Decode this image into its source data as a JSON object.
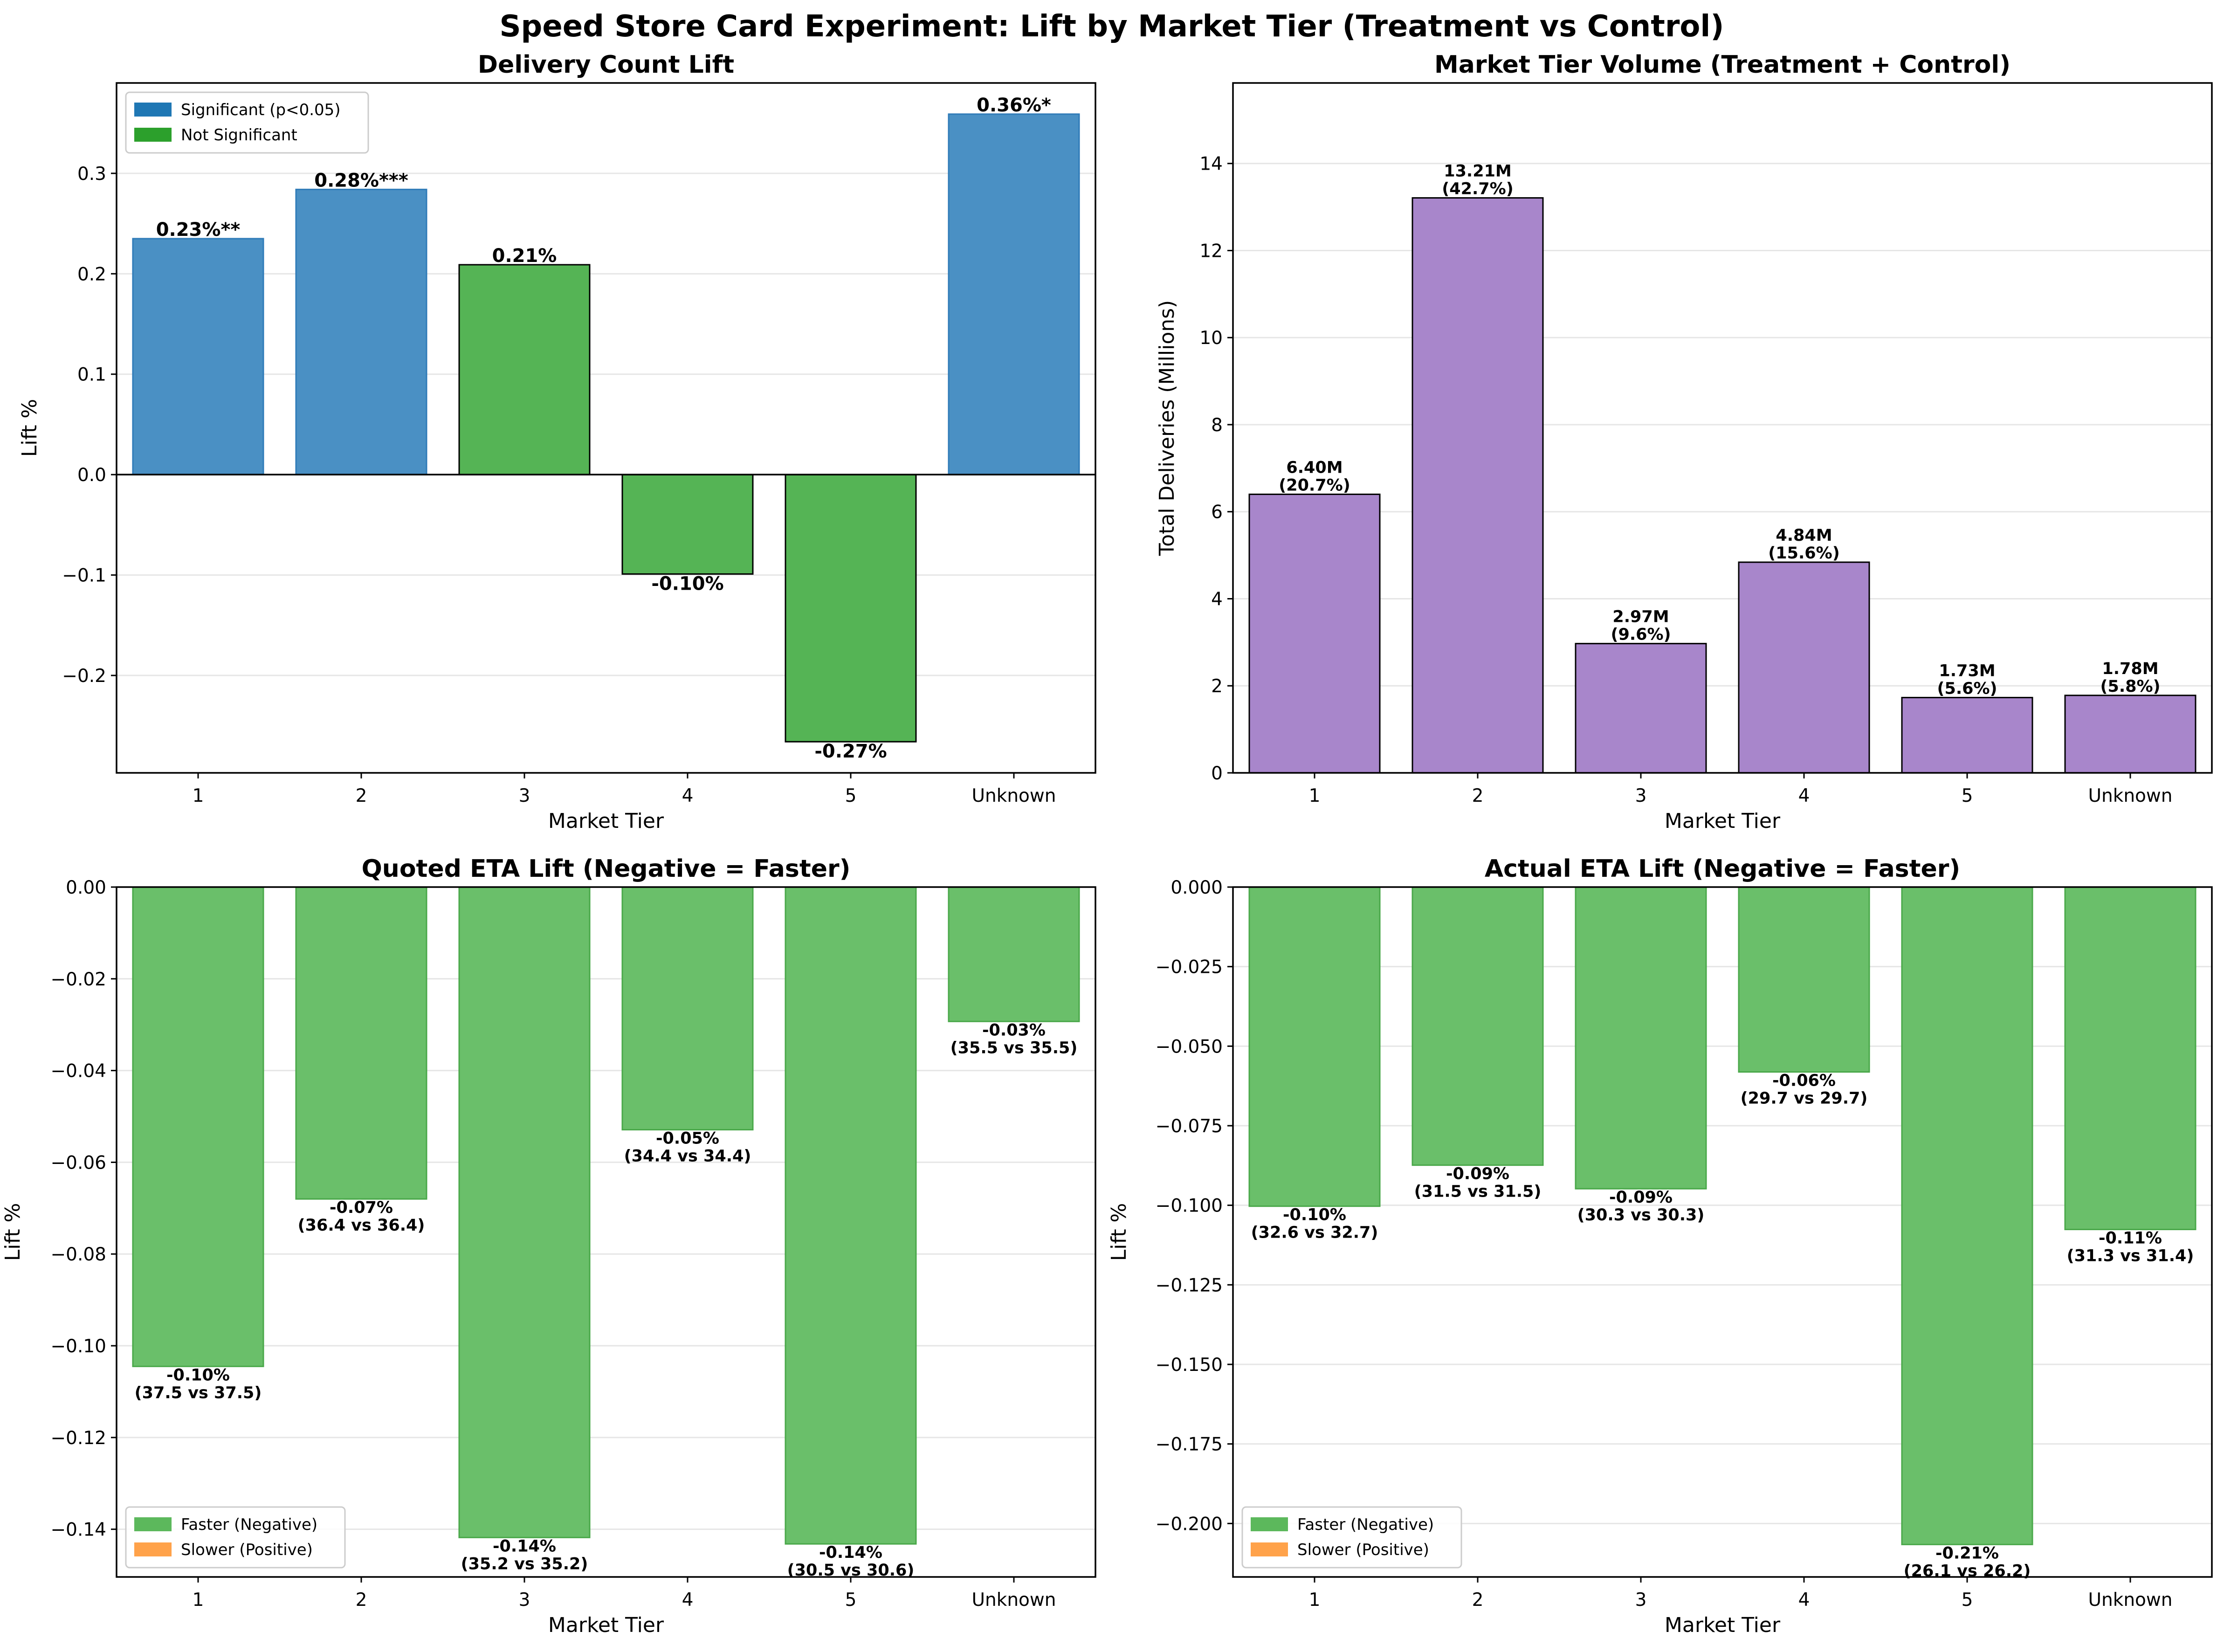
{
  "suptitle": "Speed Store Card Experiment: Lift by Market Tier (Treatment vs Control)",
  "chart_data": [
    {
      "type": "bar",
      "title": "Delivery Count Lift",
      "xlabel": "Market Tier",
      "ylabel": "Lift %",
      "categories": [
        "1",
        "2",
        "3",
        "4",
        "5",
        "Unknown"
      ],
      "values": [
        0.235,
        0.284,
        0.209,
        -0.099,
        -0.266,
        0.359
      ],
      "data_labels": [
        "0.23%**",
        "0.28%***",
        "0.21%",
        "-0.10%",
        "-0.27%",
        "0.36%*"
      ],
      "significant": [
        true,
        true,
        false,
        false,
        false,
        true
      ],
      "ylim": [
        -0.297,
        0.39
      ],
      "yticks": [
        -0.2,
        -0.1,
        0.0,
        0.1,
        0.2,
        0.3
      ],
      "ytick_labels": [
        "−0.2",
        "−0.1",
        "0.0",
        "0.1",
        "0.2",
        "0.3"
      ],
      "zero_line": true,
      "grid": "y",
      "legend": {
        "position": "top-left",
        "entries": [
          {
            "label": "Significant (p<0.05)",
            "color": "#1f77b4"
          },
          {
            "label": "Not Significant",
            "color": "#2ca02c"
          }
        ]
      },
      "colors": {
        "significant": "#4a90c4",
        "not_significant": "#55b455"
      }
    },
    {
      "type": "bar",
      "title": "Market Tier Volume (Treatment + Control)",
      "xlabel": "Market Tier",
      "ylabel": "Total Deliveries (Millions)",
      "categories": [
        "1",
        "2",
        "3",
        "4",
        "5",
        "Unknown"
      ],
      "values": [
        6.4,
        13.21,
        2.97,
        4.84,
        1.73,
        1.78
      ],
      "data_labels": [
        "6.40M\n(20.7%)",
        "13.21M\n(42.7%)",
        "2.97M\n(9.6%)",
        "4.84M\n(15.6%)",
        "1.73M\n(5.6%)",
        "1.78M\n(5.8%)"
      ],
      "ylim": [
        0,
        15.85
      ],
      "yticks": [
        0,
        2,
        4,
        6,
        8,
        10,
        12,
        14
      ],
      "ytick_labels": [
        "0",
        "2",
        "4",
        "6",
        "8",
        "10",
        "12",
        "14"
      ],
      "grid": "y",
      "colors": {
        "bar": "#a886cb"
      }
    },
    {
      "type": "bar",
      "title": "Quoted ETA Lift (Negative = Faster)",
      "xlabel": "Market Tier",
      "ylabel": "Lift %",
      "categories": [
        "1",
        "2",
        "3",
        "4",
        "5",
        "Unknown"
      ],
      "values": [
        -0.1045,
        -0.068,
        -0.1418,
        -0.0529,
        -0.1432,
        -0.0293
      ],
      "data_labels": [
        "-0.10%\n(37.5 vs 37.5)",
        "-0.07%\n(36.4 vs 36.4)",
        "-0.14%\n(35.2 vs 35.2)",
        "-0.05%\n(34.4 vs 34.4)",
        "-0.14%\n(30.5 vs 30.6)",
        "-0.03%\n(35.5 vs 35.5)"
      ],
      "ylim": [
        -0.1504,
        0.0
      ],
      "yticks": [
        -0.14,
        -0.12,
        -0.1,
        -0.08,
        -0.06,
        -0.04,
        -0.02,
        0.0
      ],
      "ytick_labels": [
        "−0.14",
        "−0.12",
        "−0.10",
        "−0.08",
        "−0.06",
        "−0.04",
        "−0.02",
        "0.00"
      ],
      "grid": "y",
      "legend": {
        "position": "bottom-left",
        "entries": [
          {
            "label": "Faster (Negative)",
            "color": "#5cb85c"
          },
          {
            "label": "Slower (Positive)",
            "color": "#ffa24a"
          }
        ]
      },
      "colors": {
        "bar": "#6abf6a"
      }
    },
    {
      "type": "bar",
      "title": "Actual ETA Lift (Negative = Faster)",
      "xlabel": "Market Tier",
      "ylabel": "Lift %",
      "categories": [
        "1",
        "2",
        "3",
        "4",
        "5",
        "Unknown"
      ],
      "values": [
        -0.1003,
        -0.0874,
        -0.0948,
        -0.0581,
        -0.2066,
        -0.1076
      ],
      "data_labels": [
        "-0.10%\n(32.6 vs 32.7)",
        "-0.09%\n(31.5 vs 31.5)",
        "-0.09%\n(30.3 vs 30.3)",
        "-0.06%\n(29.7 vs 29.7)",
        "-0.21%\n(26.1 vs 26.2)",
        "-0.11%\n(31.3 vs 31.4)"
      ],
      "ylim": [
        -0.2168,
        0.0
      ],
      "yticks": [
        -0.2,
        -0.175,
        -0.15,
        -0.125,
        -0.1,
        -0.075,
        -0.05,
        -0.025,
        0.0
      ],
      "ytick_labels": [
        "−0.200",
        "−0.175",
        "−0.150",
        "−0.125",
        "−0.100",
        "−0.075",
        "−0.050",
        "−0.025",
        "0.000"
      ],
      "grid": "y",
      "legend": {
        "position": "bottom-left",
        "entries": [
          {
            "label": "Faster (Negative)",
            "color": "#5cb85c"
          },
          {
            "label": "Slower (Positive)",
            "color": "#ffa24a"
          }
        ]
      },
      "colors": {
        "bar": "#6abf6a"
      }
    }
  ]
}
